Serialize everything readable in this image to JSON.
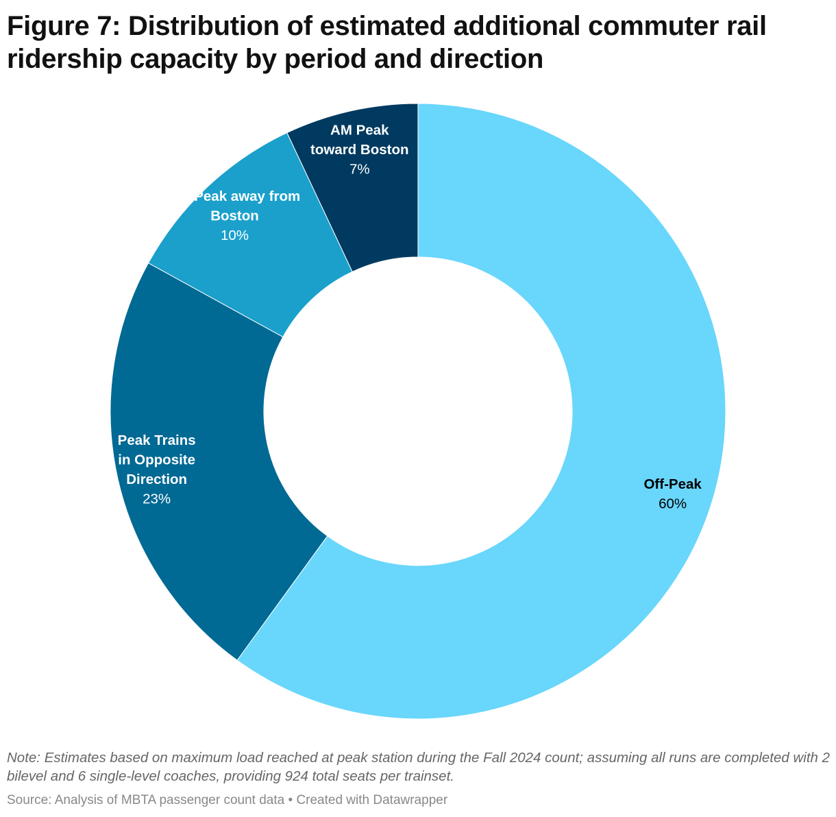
{
  "title": "Figure 7: Distribution of estimated additional commuter rail ridership capacity by period and direction",
  "note": "Note: Estimates based on maximum load reached at peak station during the Fall 2024 count; assuming all runs are completed with 2 bilevel and 6 single-level coaches, providing 924 total seats per trainset.",
  "source": "Source: Analysis of MBTA passenger count data",
  "credit": "Created with Datawrapper",
  "chart_data": {
    "type": "pie",
    "variant": "donut",
    "title": "Figure 7: Distribution of estimated additional commuter rail ridership capacity by period and direction",
    "unit": "%",
    "slices": [
      {
        "name": "Off-Peak",
        "label_lines": [
          "Off-Peak"
        ],
        "value": 60,
        "value_label": "60%",
        "color": "#69d6fb",
        "text_color": "#000000"
      },
      {
        "name": "Peak Trains in Opposite Direction",
        "label_lines": [
          "Peak Trains",
          "in Opposite",
          "Direction"
        ],
        "value": 23,
        "value_label": "23%",
        "color": "#006994",
        "text_color": "#ffffff"
      },
      {
        "name": "PM Peak away from Boston",
        "label_lines": [
          "PM Peak away from",
          "Boston"
        ],
        "value": 10,
        "value_label": "10%",
        "color": "#1aa0cb",
        "text_color": "#ffffff"
      },
      {
        "name": "AM Peak toward Boston",
        "label_lines": [
          "AM Peak",
          "toward Boston"
        ],
        "value": 7,
        "value_label": "7%",
        "color": "#003a60",
        "text_color": "#ffffff"
      }
    ]
  }
}
